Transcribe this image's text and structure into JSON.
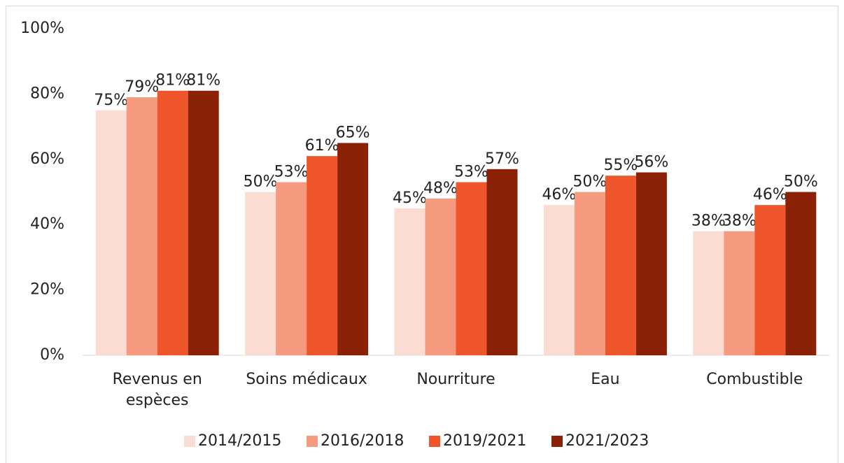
{
  "chart_data": {
    "type": "bar",
    "categories": [
      "Revenus en\nespèces",
      "Soins médicaux",
      "Nourriture",
      "Eau",
      "Combustible"
    ],
    "series": [
      {
        "name": "2014/2015",
        "color": "#fbdcd2",
        "values": [
          75,
          50,
          45,
          46,
          38
        ],
        "value_labels": [
          "75%",
          "50%",
          "45%",
          "46%",
          "38%"
        ]
      },
      {
        "name": "2016/2018",
        "color": "#f79b80",
        "values": [
          79,
          53,
          48,
          50,
          38
        ],
        "value_labels": [
          "79%",
          "53%",
          "48%",
          "50%",
          "38%"
        ]
      },
      {
        "name": "2019/2021",
        "color": "#f0562b",
        "values": [
          81,
          61,
          53,
          55,
          46
        ],
        "value_labels": [
          "81%",
          "61%",
          "53%",
          "55%",
          "46%"
        ]
      },
      {
        "name": "2021/2023",
        "color": "#8b2208",
        "values": [
          81,
          65,
          57,
          56,
          50
        ],
        "value_labels": [
          "81%",
          "65%",
          "57%",
          "56%",
          "50%"
        ]
      }
    ],
    "ylim": [
      0,
      100
    ],
    "yticks": [
      {
        "value": 0,
        "label": "0%"
      },
      {
        "value": 20,
        "label": "20%"
      },
      {
        "value": 40,
        "label": "40%"
      },
      {
        "value": 60,
        "label": "60%"
      },
      {
        "value": 80,
        "label": "80%"
      },
      {
        "value": 100,
        "label": "100%"
      }
    ],
    "grid": false,
    "legend": "bottom"
  }
}
